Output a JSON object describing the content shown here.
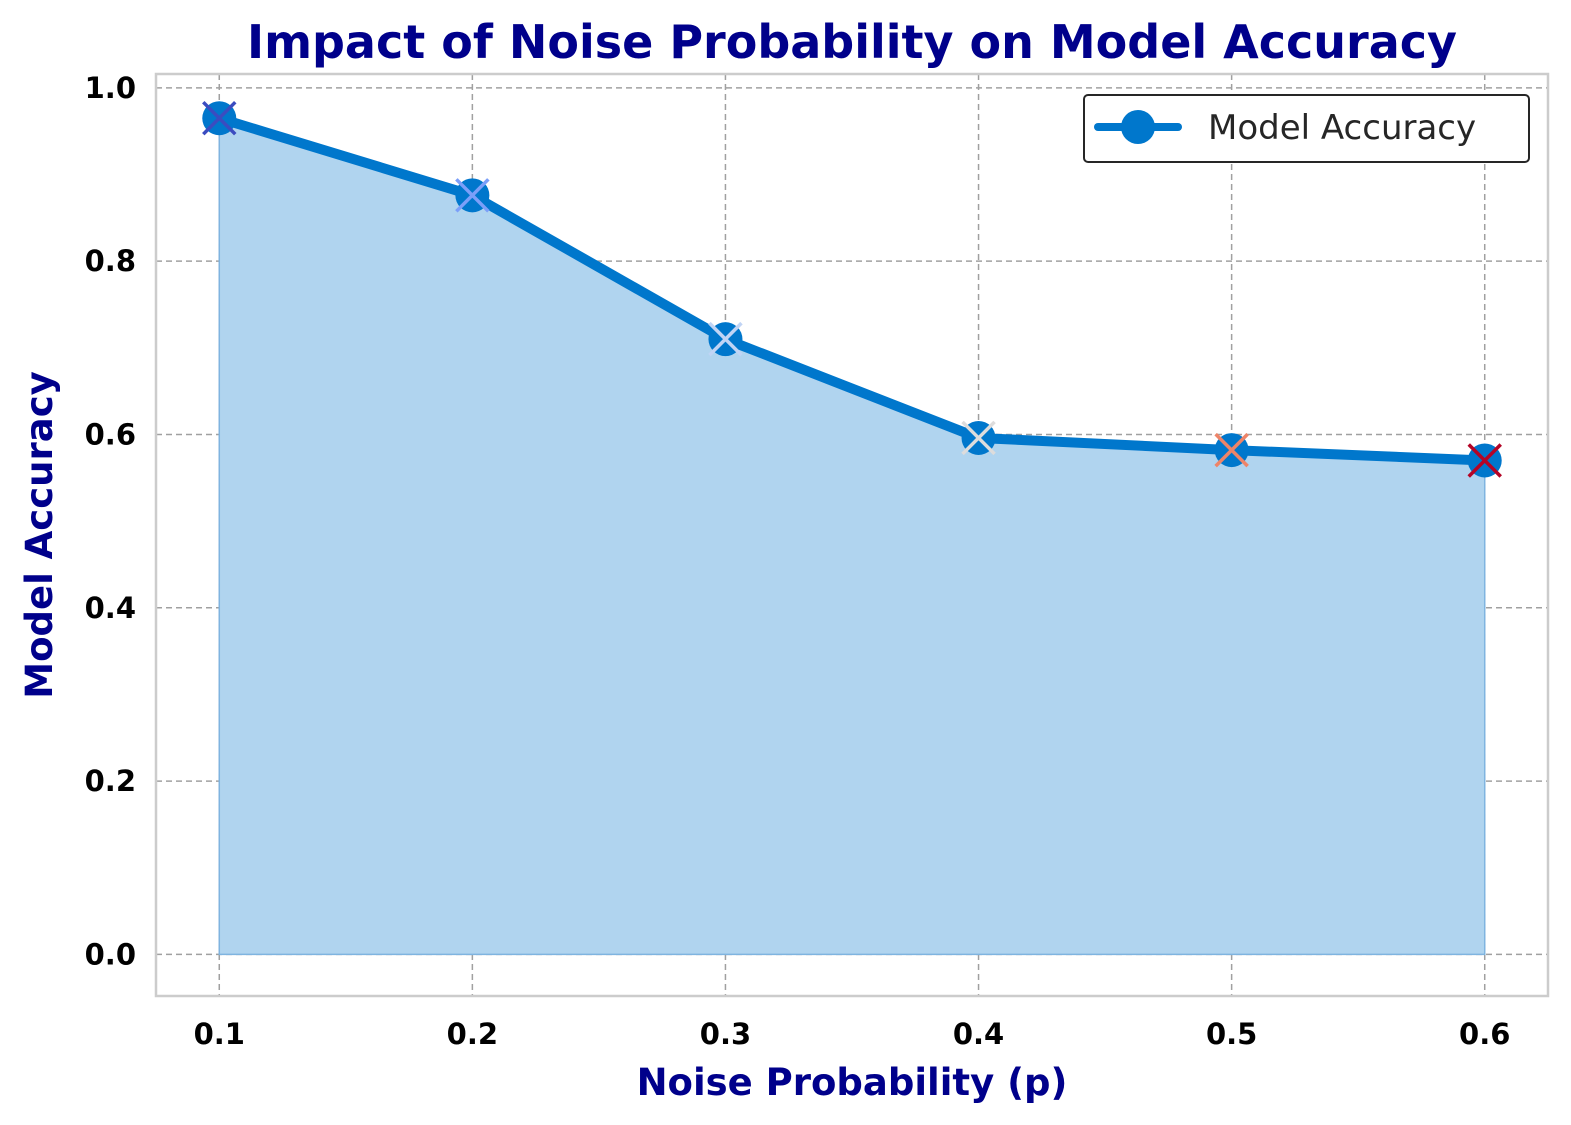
{
  "chart_data": {
    "type": "line",
    "title": "Impact of Noise Probability on Model Accuracy",
    "xlabel": "Noise Probability (p)",
    "ylabel": "Model Accuracy",
    "x": [
      0.1,
      0.2,
      0.3,
      0.4,
      0.5,
      0.6
    ],
    "x_tick_labels": [
      "0.1",
      "0.2",
      "0.3",
      "0.4",
      "0.5",
      "0.6"
    ],
    "y_ticks": [
      0.0,
      0.2,
      0.4,
      0.6,
      0.8,
      1.0
    ],
    "y_tick_labels": [
      "0.0",
      "0.2",
      "0.4",
      "0.6",
      "0.8",
      "1.0"
    ],
    "xlim": [
      0.075,
      0.625
    ],
    "ylim": [
      -0.048,
      1.016
    ],
    "grid": true,
    "legend_position": "top-right",
    "series": [
      {
        "name": "Model Accuracy",
        "values": [
          0.965,
          0.876,
          0.71,
          0.596,
          0.582,
          0.57
        ],
        "color": "#0077cc",
        "fill_color": "#b0d4ef",
        "marker_colors": [
          "#3b4cc0",
          "#7b9ff9",
          "#c0d4f5",
          "#dddcdc",
          "#ee8468",
          "#b40426"
        ]
      }
    ]
  }
}
